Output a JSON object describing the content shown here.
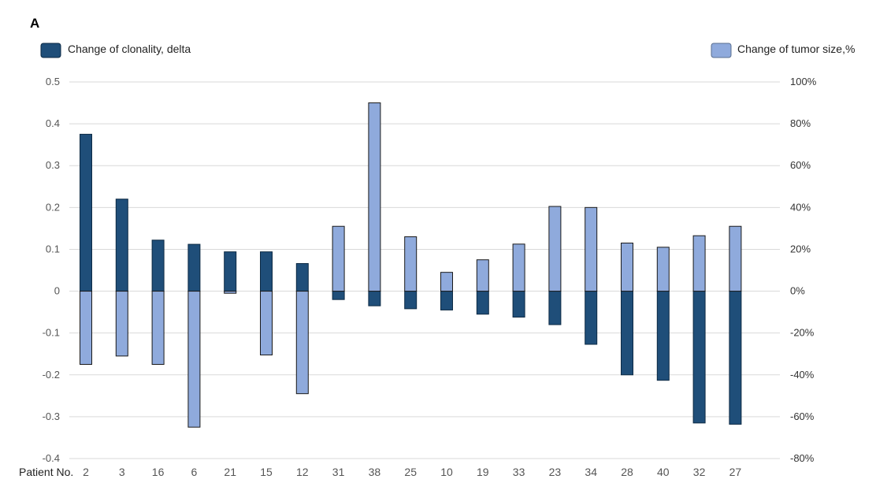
{
  "panel_label": "A",
  "chart_data": {
    "type": "bar",
    "xlabel": "Patient No.",
    "categories": [
      "2",
      "3",
      "16",
      "6",
      "21",
      "15",
      "12",
      "31",
      "38",
      "25",
      "10",
      "19",
      "33",
      "23",
      "34",
      "28",
      "40",
      "32",
      "27"
    ],
    "series": [
      {
        "name": "Change of clonality, delta",
        "axis": "left",
        "color": "#1f4e79",
        "values": [
          0.375,
          0.22,
          0.122,
          0.112,
          0.094,
          0.094,
          0.066,
          -0.02,
          -0.035,
          -0.042,
          -0.045,
          -0.055,
          -0.062,
          -0.08,
          -0.127,
          -0.2,
          -0.213,
          -0.315,
          -0.318
        ]
      },
      {
        "name": "Change of tumor size,%",
        "axis": "right",
        "color": "#8faadc",
        "values": [
          -35,
          -31,
          -35,
          -65,
          -1,
          -30.5,
          -49,
          31,
          90,
          26,
          9,
          15,
          22.5,
          40.5,
          40,
          23,
          21,
          26.5,
          31
        ]
      }
    ],
    "left_axis": {
      "ylim": [
        -0.4,
        0.5
      ],
      "ticks": [
        "-0.4",
        "-0.3",
        "-0.2",
        "-0.1",
        "0",
        "0.1",
        "0.2",
        "0.3",
        "0.4",
        "0.5"
      ]
    },
    "right_axis": {
      "ylim": [
        -80,
        100
      ],
      "ticks": [
        "-80%",
        "-60%",
        "-40%",
        "-20%",
        "0%",
        "20%",
        "40%",
        "60%",
        "80%",
        "100%"
      ]
    },
    "grid": true,
    "legend_placement": "top"
  }
}
